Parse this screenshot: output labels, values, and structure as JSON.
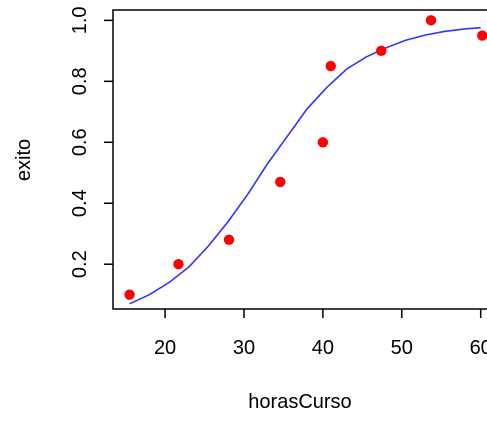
{
  "chart_data": {
    "type": "scatter",
    "title": "",
    "xlabel": "horasCurso",
    "ylabel": "exito",
    "x_ticks": [
      {
        "value": 20,
        "label": "20"
      },
      {
        "value": 30,
        "label": "30"
      },
      {
        "value": 40,
        "label": "40"
      },
      {
        "value": 50,
        "label": "50"
      },
      {
        "value": 60,
        "label": "60"
      }
    ],
    "y_ticks": [
      {
        "value": 0.2,
        "label": "0.2"
      },
      {
        "value": 0.4,
        "label": "0.4"
      },
      {
        "value": 0.6,
        "label": "0.6"
      },
      {
        "value": 0.8,
        "label": "0.8"
      },
      {
        "value": 1.0,
        "label": "1.0"
      }
    ],
    "xlim": [
      13.4,
      60.8
    ],
    "ylim": [
      0.053,
      1.034
    ],
    "grid": false,
    "points": {
      "color": "#ff0000",
      "x": [
        15.5,
        21.7,
        28.1,
        34.6,
        40.0,
        41.0,
        47.4,
        53.7,
        60.2
      ],
      "y": [
        0.1,
        0.2,
        0.28,
        0.47,
        0.6,
        0.85,
        0.9,
        1.0,
        0.95
      ]
    },
    "fitted_curve": {
      "color": "#3333ff",
      "model": "logistic",
      "x": [
        15.5,
        18.0,
        20.5,
        23.0,
        25.5,
        28.0,
        30.5,
        33.0,
        35.5,
        38.0,
        40.5,
        43.0,
        45.5,
        48.0,
        50.5,
        53.0,
        55.5,
        58.0,
        60.0
      ],
      "y": [
        0.07,
        0.1,
        0.14,
        0.19,
        0.26,
        0.34,
        0.43,
        0.53,
        0.62,
        0.71,
        0.78,
        0.84,
        0.88,
        0.91,
        0.935,
        0.952,
        0.964,
        0.972,
        0.976
      ]
    }
  }
}
